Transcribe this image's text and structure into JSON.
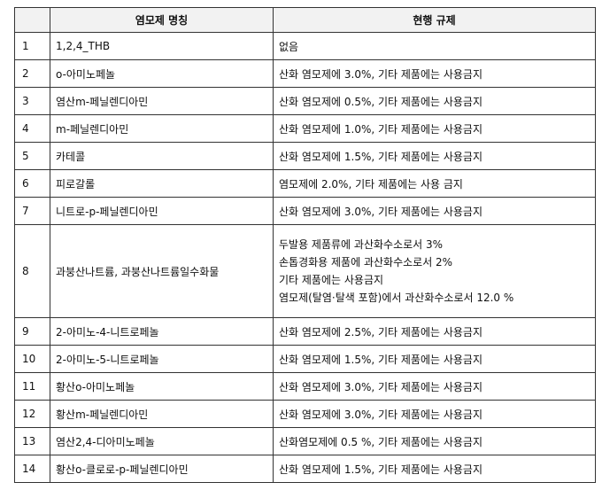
{
  "table": {
    "headers": [
      "",
      "염모제 명칭",
      "현행 규제"
    ],
    "rows": [
      {
        "no": "1",
        "name": "1,2,4_THB",
        "regulation": [
          "없음"
        ]
      },
      {
        "no": "2",
        "name": "o-아미노페놀",
        "regulation": [
          "산화 염모제에 3.0%, 기타 제품에는 사용금지"
        ]
      },
      {
        "no": "3",
        "name": "염산m-페닐렌디아민",
        "regulation": [
          "산화 염모제에 0.5%, 기타 제품에는 사용금지"
        ]
      },
      {
        "no": "4",
        "name": "m-페닐렌디아민",
        "regulation": [
          "산화 염모제에 1.0%, 기타 제품에는 사용금지"
        ]
      },
      {
        "no": "5",
        "name": "카테콜",
        "regulation": [
          "산화 염모제에 1.5%, 기타 제품에는 사용금지"
        ]
      },
      {
        "no": "6",
        "name": "피로갈롤",
        "regulation": [
          "염모제에 2.0%, 기타 제품에는 사용 금지"
        ]
      },
      {
        "no": "7",
        "name": "니트로-p-페닐렌디아민",
        "regulation": [
          "산화 염모제에 3.0%, 기타 제품에는 사용금지"
        ]
      },
      {
        "no": "8",
        "name": "과붕산나트륨, 과붕산나트륨일수화물",
        "regulation": [
          "두발용 제품류에 과산화수소로서 3%",
          "손톱경화용 제품에 과산화수소로서 2%",
          "기타 제품에는 사용금지",
          "염모제(탈염·탈색 포함)에서 과산화수소로서 12.0 %"
        ]
      },
      {
        "no": "9",
        "name": "2-아미노-4-니트로페놀",
        "regulation": [
          "산화 염모제에 2.5%, 기타 제품에는 사용금지"
        ]
      },
      {
        "no": "10",
        "name": "2-아미노-5-니트로페놀",
        "regulation": [
          "산화 염모제에 1.5%, 기타 제품에는 사용금지"
        ]
      },
      {
        "no": "11",
        "name": "황산o-아미노페놀",
        "regulation": [
          "산화 염모제에 3.0%, 기타 제품에는 사용금지"
        ]
      },
      {
        "no": "12",
        "name": "황산m-페닐렌디아민",
        "regulation": [
          "산화 염모제에 3.0%, 기타 제품에는 사용금지"
        ]
      },
      {
        "no": "13",
        "name": "염산2,4-디아미노페놀",
        "regulation": [
          "산화염모제에 0.5 %, 기타 제품에는 사용금지"
        ]
      },
      {
        "no": "14",
        "name": "황산o-클로로-p-페닐렌디아민",
        "regulation": [
          "산화 염모제에 1.5%, 기타 제품에는 사용금지"
        ]
      }
    ]
  }
}
